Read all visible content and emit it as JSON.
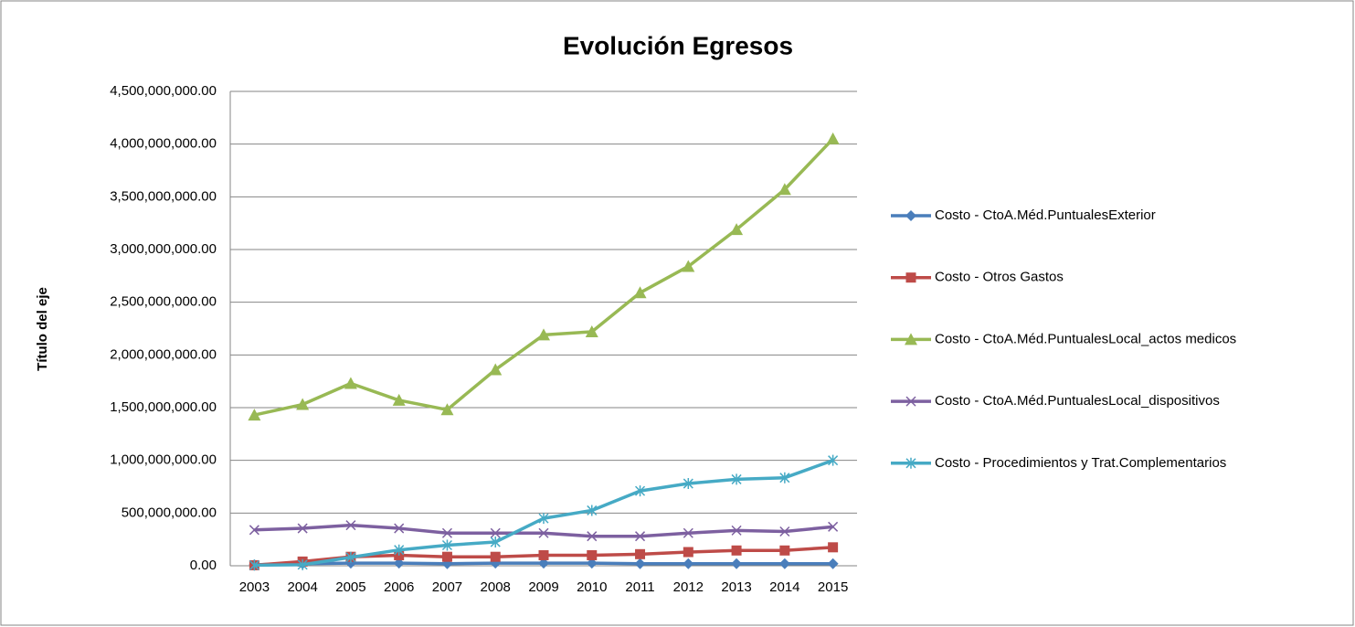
{
  "chart_data": {
    "type": "line",
    "title": "Evolución Egresos",
    "y_axis_label": "Título del eje",
    "categories": [
      "2003",
      "2004",
      "2005",
      "2006",
      "2007",
      "2008",
      "2009",
      "2010",
      "2011",
      "2012",
      "2013",
      "2014",
      "2015"
    ],
    "ylim": [
      0,
      4500000000
    ],
    "yticks": [
      {
        "value": 0,
        "label": "0.00"
      },
      {
        "value": 500000000,
        "label": "500,000,000.00"
      },
      {
        "value": 1000000000,
        "label": "1,000,000,000.00"
      },
      {
        "value": 1500000000,
        "label": "1,500,000,000.00"
      },
      {
        "value": 2000000000,
        "label": "2,000,000,000.00"
      },
      {
        "value": 2500000000,
        "label": "2,500,000,000.00"
      },
      {
        "value": 3000000000,
        "label": "3,000,000,000.00"
      },
      {
        "value": 3500000000,
        "label": "3,500,000,000.00"
      },
      {
        "value": 4000000000,
        "label": "4,000,000,000.00"
      },
      {
        "value": 4500000000,
        "label": "4,500,000,000.00"
      }
    ],
    "grid": true,
    "legend": "right",
    "series": [
      {
        "name": "Costo - CtoA.Méd.PuntualesExterior",
        "color": "#4a7ebb",
        "marker": "diamond",
        "values": [
          10000000,
          20000000,
          25000000,
          25000000,
          20000000,
          25000000,
          25000000,
          25000000,
          20000000,
          20000000,
          20000000,
          20000000,
          20000000
        ]
      },
      {
        "name": "Costo - Otros Gastos",
        "color": "#be4b48",
        "marker": "square",
        "values": [
          5000000,
          40000000,
          85000000,
          100000000,
          85000000,
          85000000,
          100000000,
          100000000,
          110000000,
          130000000,
          145000000,
          145000000,
          175000000
        ]
      },
      {
        "name": "Costo - CtoA.Méd.PuntualesLocal_actos medicos",
        "color": "#98b954",
        "marker": "triangle",
        "values": [
          1430000000,
          1530000000,
          1730000000,
          1570000000,
          1480000000,
          1860000000,
          2190000000,
          2220000000,
          2590000000,
          2840000000,
          3190000000,
          3570000000,
          4050000000
        ]
      },
      {
        "name": "Costo - CtoA.Méd.PuntualesLocal_dispositivos",
        "color": "#7d60a0",
        "marker": "x",
        "values": [
          340000000,
          355000000,
          385000000,
          355000000,
          310000000,
          310000000,
          310000000,
          280000000,
          280000000,
          310000000,
          335000000,
          325000000,
          370000000
        ]
      },
      {
        "name": "Costo - Procedimientos y Trat.Complementarios",
        "color": "#46aac5",
        "marker": "star",
        "values": [
          5000000,
          10000000,
          80000000,
          150000000,
          195000000,
          225000000,
          450000000,
          525000000,
          710000000,
          780000000,
          820000000,
          835000000,
          1000000000
        ]
      }
    ]
  }
}
